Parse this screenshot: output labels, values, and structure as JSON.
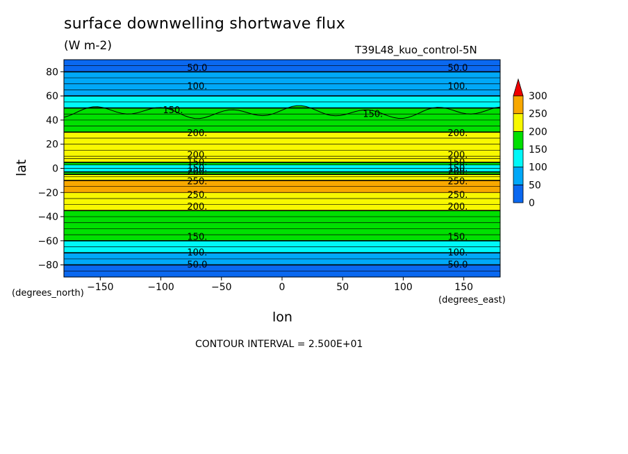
{
  "title": "surface downwelling shortwave flux",
  "units": "(W m-2)",
  "run_label": "T39L48_kuo_control-5N",
  "contour_interval_text": "CONTOUR INTERVAL = 2.500E+01",
  "colors": {
    "band_0_50": "#0a68f0",
    "band_50_100": "#00a8f8",
    "band_100_150": "#00f8f8",
    "band_150_200": "#00e000",
    "band_200_250": "#f8f800",
    "band_250_300": "#f8a800",
    "over_300": "#f00000"
  },
  "chart_data": {
    "type": "heatmap",
    "title": "surface downwelling shortwave flux",
    "units": "(W m-2)",
    "xlabel": "lon",
    "ylabel": "lat",
    "x_units": "(degrees_east)",
    "y_units": "(degrees_north)",
    "xlim": [
      -180,
      180
    ],
    "ylim": [
      -90,
      90
    ],
    "x_ticks": [
      -150,
      -100,
      -50,
      0,
      50,
      100,
      150
    ],
    "y_ticks": [
      -80,
      -60,
      -40,
      -20,
      0,
      20,
      40,
      60,
      80
    ],
    "colorbar": {
      "levels": [
        0,
        50,
        100,
        150,
        200,
        250,
        300
      ],
      "colors": [
        "#0a68f0",
        "#00a8f8",
        "#00f8f8",
        "#00e000",
        "#f8f800",
        "#f8a800"
      ],
      "over_color": "#f00000"
    },
    "contour_interval": 25,
    "latitude_profile": {
      "lat": [
        -90,
        -85,
        -80,
        -75,
        -70,
        -65,
        -60,
        -55,
        -50,
        -45,
        -40,
        -35,
        -30,
        -25,
        -20,
        -15,
        -10,
        -7,
        -5,
        -3,
        0,
        3,
        5,
        8,
        10,
        15,
        20,
        25,
        30,
        35,
        40,
        45,
        50,
        55,
        60,
        65,
        70,
        75,
        80,
        85,
        90
      ],
      "flux": [
        10,
        30,
        50,
        75,
        100,
        125,
        150,
        165,
        175,
        180,
        190,
        200,
        215,
        235,
        260,
        260,
        250,
        225,
        200,
        150,
        140,
        155,
        200,
        210,
        225,
        225,
        220,
        215,
        200,
        175,
        165,
        160,
        150,
        125,
        100,
        90,
        75,
        60,
        50,
        25,
        0
      ]
    },
    "contour_labels": [
      {
        "text": "50.0",
        "lon": -70,
        "lat": 83
      },
      {
        "text": "50.0",
        "lon": 145,
        "lat": 83
      },
      {
        "text": "100.",
        "lon": -70,
        "lat": 68
      },
      {
        "text": "100.",
        "lon": 145,
        "lat": 68
      },
      {
        "text": "150.",
        "lon": -90,
        "lat": 48
      },
      {
        "text": "150.",
        "lon": 75,
        "lat": 45
      },
      {
        "text": "200.",
        "lon": -70,
        "lat": 29
      },
      {
        "text": "200.",
        "lon": 145,
        "lat": 29
      },
      {
        "text": "200.",
        "lon": -70,
        "lat": 11
      },
      {
        "text": "200.",
        "lon": 145,
        "lat": 11
      },
      {
        "text": "150.",
        "lon": -70,
        "lat": 5
      },
      {
        "text": "150.",
        "lon": 145,
        "lat": 5
      },
      {
        "text": "150.",
        "lon": -70,
        "lat": 0
      },
      {
        "text": "150.",
        "lon": 145,
        "lat": 0
      },
      {
        "text": "200.",
        "lon": -70,
        "lat": -3
      },
      {
        "text": "200.",
        "lon": 145,
        "lat": -3
      },
      {
        "text": "250.",
        "lon": -70,
        "lat": -11
      },
      {
        "text": "250.",
        "lon": 145,
        "lat": -11
      },
      {
        "text": "250.",
        "lon": -70,
        "lat": -22
      },
      {
        "text": "250.",
        "lon": 145,
        "lat": -22
      },
      {
        "text": "200.",
        "lon": -70,
        "lat": -32
      },
      {
        "text": "200.",
        "lon": 145,
        "lat": -32
      },
      {
        "text": "150.",
        "lon": -70,
        "lat": -57
      },
      {
        "text": "150.",
        "lon": 145,
        "lat": -57
      },
      {
        "text": "100.",
        "lon": -70,
        "lat": -70
      },
      {
        "text": "100.",
        "lon": 145,
        "lat": -70
      },
      {
        "text": "50.0",
        "lon": -70,
        "lat": -80
      },
      {
        "text": "50.0",
        "lon": 145,
        "lat": -80
      }
    ]
  }
}
